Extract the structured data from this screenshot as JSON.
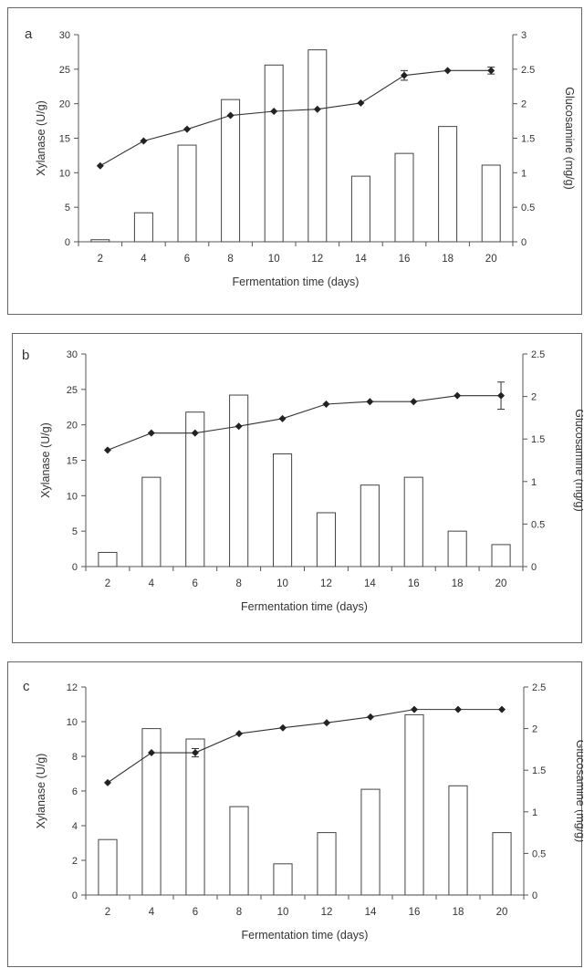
{
  "chart_data": [
    {
      "type": "bar",
      "panel_label": "a",
      "categories": [
        "2",
        "4",
        "6",
        "8",
        "10",
        "12",
        "14",
        "16",
        "18",
        "20"
      ],
      "xlabel": "Fermentation time (days)",
      "ylabel": "Xylanase (U/g)",
      "y2label": "Glucosamine (mg/g)",
      "ylim": [
        0,
        30
      ],
      "yticks": [
        "0",
        "5",
        "10",
        "15",
        "20",
        "25",
        "30"
      ],
      "y2lim": [
        0,
        3
      ],
      "y2ticks": [
        "0",
        "0.5",
        "1",
        "1.5",
        "2",
        "2.5",
        "3"
      ],
      "series": [
        {
          "type": "bar",
          "axis": "left",
          "values": [
            0.3,
            4.2,
            14.0,
            20.6,
            25.6,
            27.8,
            9.5,
            12.8,
            16.7,
            11.1
          ],
          "errors": [
            0,
            0,
            0,
            0,
            0,
            0,
            0,
            0,
            0,
            0
          ]
        },
        {
          "type": "line",
          "axis": "right",
          "marker": "diamond",
          "values": [
            1.1,
            1.46,
            1.63,
            1.83,
            1.89,
            1.92,
            2.01,
            2.41,
            2.48,
            2.48
          ],
          "errors": [
            0,
            0,
            0,
            0,
            0,
            0,
            0,
            0.07,
            0,
            0.05
          ]
        }
      ]
    },
    {
      "type": "bar",
      "panel_label": "b",
      "categories": [
        "2",
        "4",
        "6",
        "8",
        "10",
        "12",
        "14",
        "16",
        "18",
        "20"
      ],
      "xlabel": "Fermentation time (days)",
      "ylabel": "Xylanase (U/g)",
      "y2label": "Glucosamine (mg/g)",
      "ylim": [
        0,
        30
      ],
      "yticks": [
        "0",
        "5",
        "10",
        "15",
        "20",
        "25",
        "30"
      ],
      "y2lim": [
        0,
        2.5
      ],
      "y2ticks": [
        "0",
        "0.5",
        "1",
        "1.5",
        "2",
        "2.5"
      ],
      "series": [
        {
          "type": "bar",
          "axis": "left",
          "values": [
            2.0,
            12.6,
            21.8,
            24.2,
            15.9,
            7.6,
            11.5,
            12.6,
            5.0,
            3.1
          ],
          "errors": [
            0,
            0,
            0,
            0,
            0,
            0,
            0,
            0,
            0,
            0
          ]
        },
        {
          "type": "line",
          "axis": "right",
          "marker": "diamond",
          "values": [
            1.37,
            1.57,
            1.57,
            1.65,
            1.74,
            1.91,
            1.94,
            1.94,
            2.01,
            2.01
          ],
          "errors": [
            0,
            0,
            0,
            0,
            0,
            0,
            0,
            0,
            0,
            0.16
          ]
        }
      ]
    },
    {
      "type": "bar",
      "panel_label": "c",
      "categories": [
        "2",
        "4",
        "6",
        "8",
        "10",
        "12",
        "14",
        "16",
        "18",
        "20"
      ],
      "xlabel": "Fermentation time (days)",
      "ylabel": "Xylanase (U/g)",
      "y2label": "Glucosamine (mg/g)",
      "ylim": [
        0,
        12
      ],
      "yticks": [
        "0",
        "2",
        "4",
        "6",
        "8",
        "10",
        "12"
      ],
      "y2lim": [
        0,
        2.5
      ],
      "y2ticks": [
        "0",
        "0.5",
        "1",
        "1.5",
        "2",
        "2.5"
      ],
      "series": [
        {
          "type": "bar",
          "axis": "left",
          "values": [
            3.2,
            9.6,
            9.0,
            5.1,
            1.8,
            3.6,
            6.1,
            10.4,
            6.3,
            3.6
          ],
          "errors": [
            0,
            0,
            0,
            0,
            0,
            0,
            0,
            0,
            0,
            0
          ]
        },
        {
          "type": "line",
          "axis": "right",
          "marker": "diamond",
          "values": [
            1.35,
            1.71,
            1.71,
            1.94,
            2.01,
            2.07,
            2.14,
            2.23,
            2.23,
            2.23
          ],
          "errors": [
            0,
            0,
            0.05,
            0,
            0,
            0,
            0,
            0,
            0,
            0
          ]
        }
      ]
    }
  ]
}
